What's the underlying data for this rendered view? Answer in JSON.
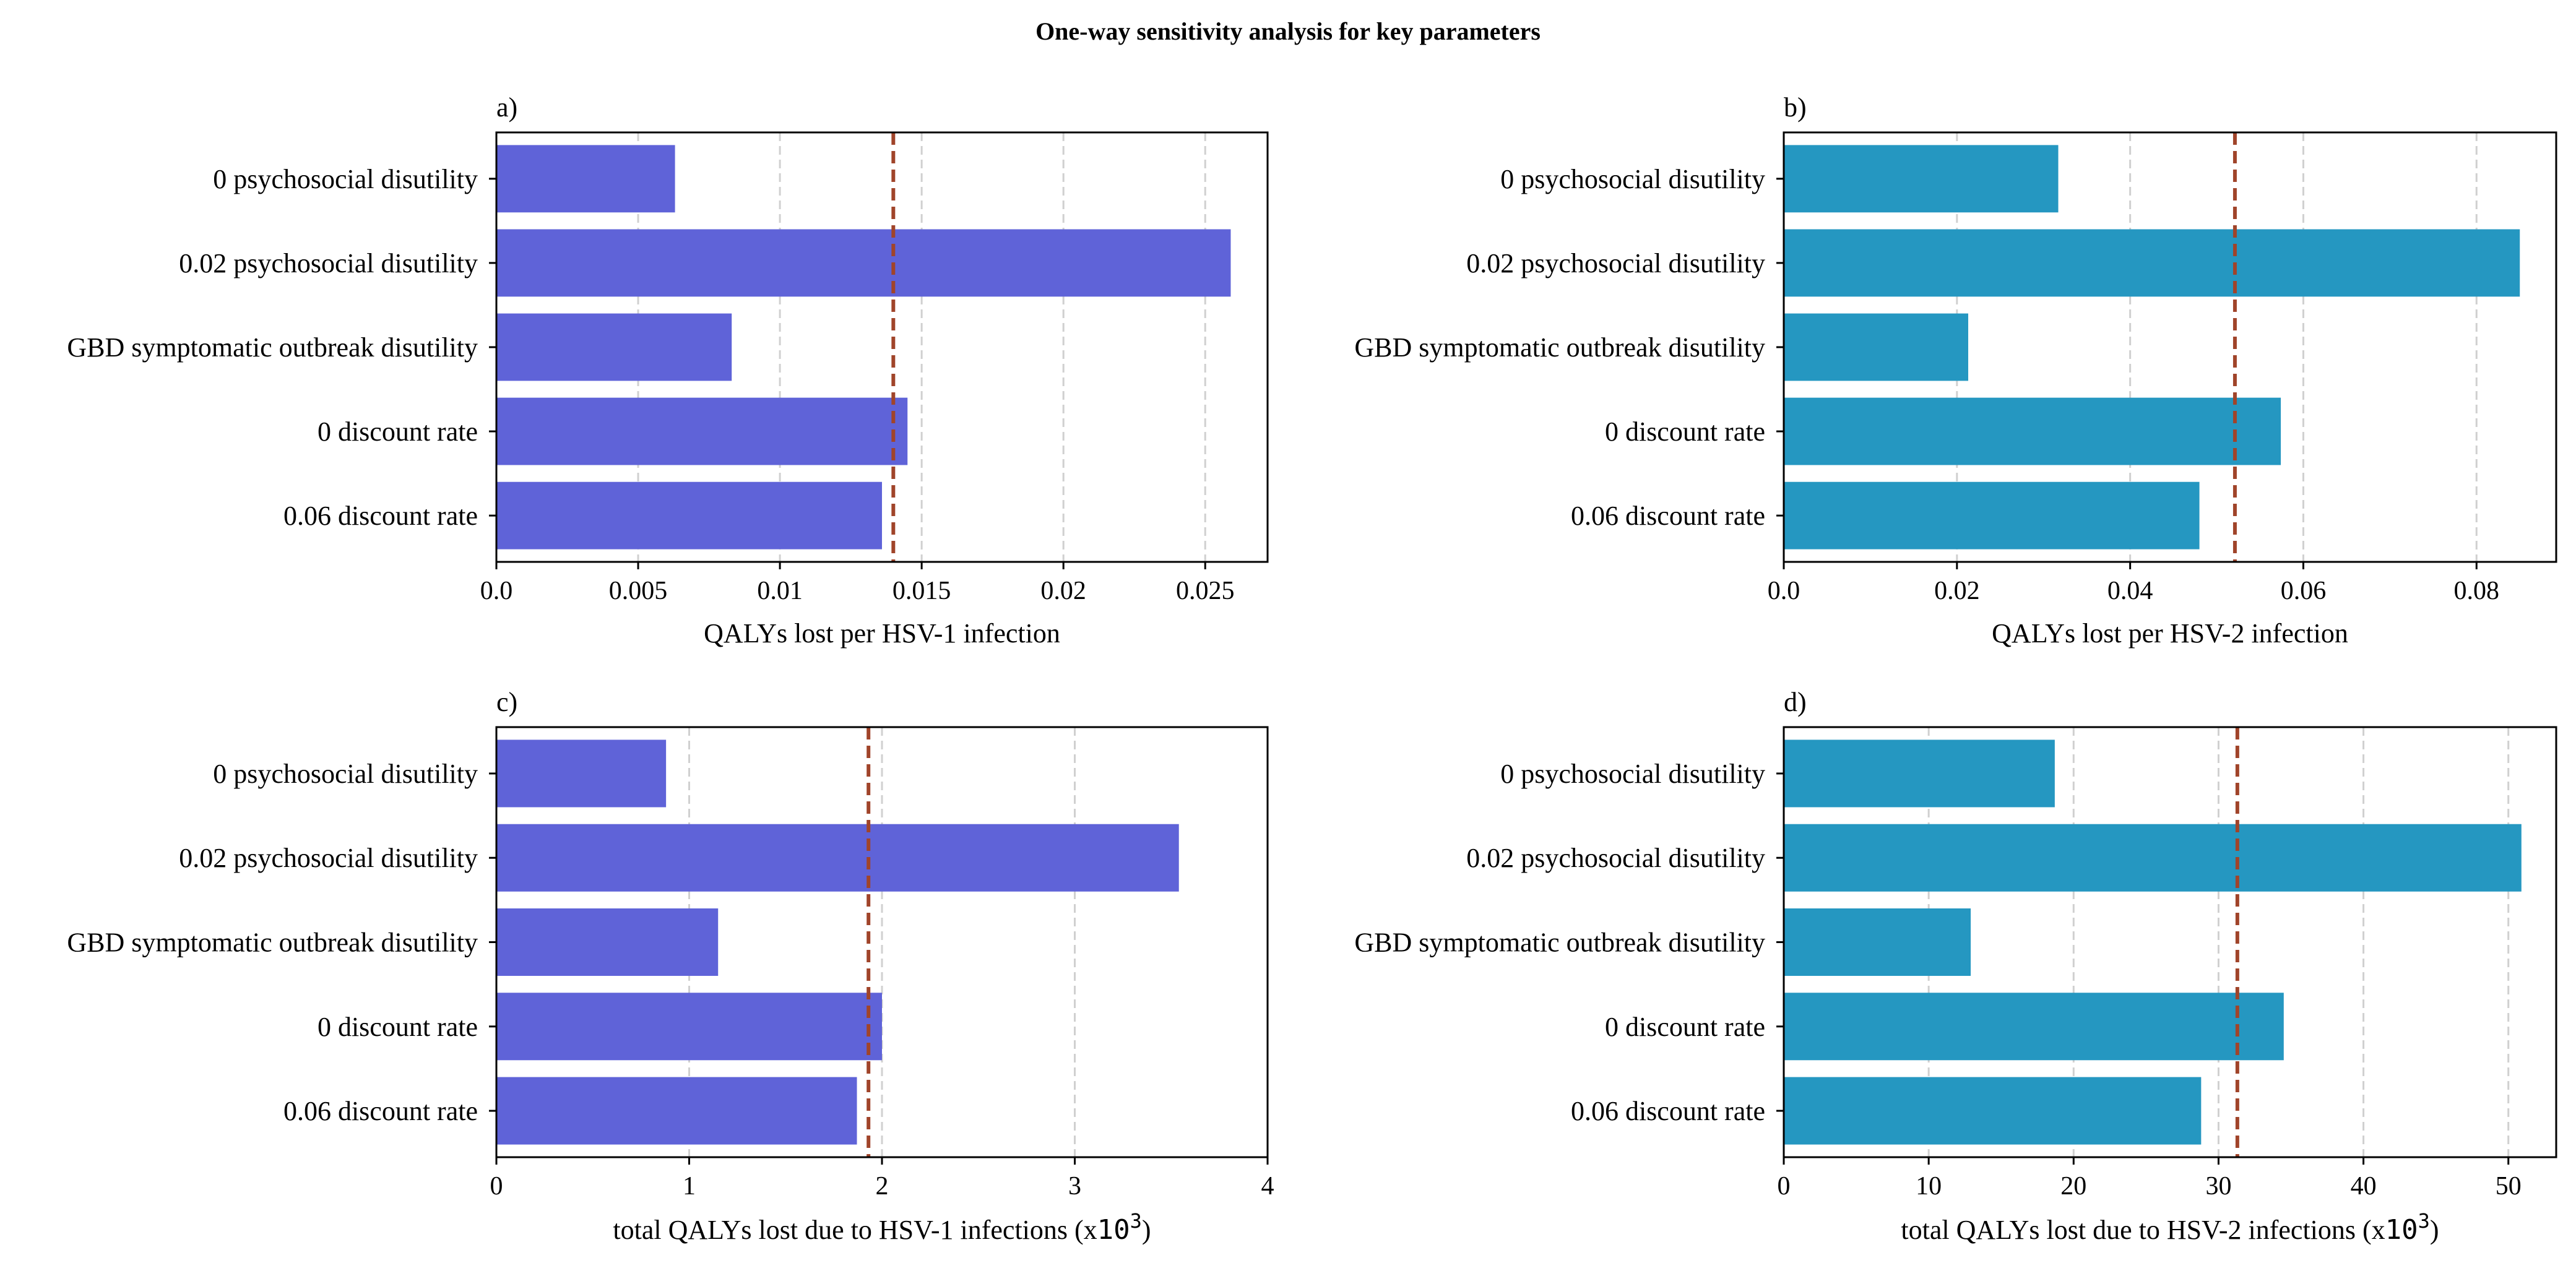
{
  "title": "One-way sensitivity analysis for key parameters",
  "colors": {
    "bar_hsv1": "#5f63d8",
    "bar_hsv2": "#2597c1",
    "reference_line": "#a0442a",
    "grid": "#d0d0d0"
  },
  "chart_data": [
    {
      "type": "bar",
      "orientation": "horizontal",
      "panel_label": "a)",
      "categories": [
        "0 psychosocial disutility",
        "0.02 psychosocial disutility",
        "GBD symptomatic outbreak disutility",
        "0 discount rate",
        "0.06 discount rate"
      ],
      "values": [
        0.0063,
        0.0259,
        0.0083,
        0.0145,
        0.0136
      ],
      "reference_value": 0.014,
      "xlim": [
        0,
        0.0272
      ],
      "xticks": [
        0.0,
        0.005,
        0.01,
        0.015,
        0.02,
        0.025
      ],
      "xtick_labels": [
        "0.0",
        "0.005",
        "0.01",
        "0.015",
        "0.02",
        "0.025"
      ],
      "xlabel": "QALYs lost per HSV-1 infection",
      "xlabel_suffix": "",
      "grid": "x-dashed",
      "color_key": "bar_hsv1"
    },
    {
      "type": "bar",
      "orientation": "horizontal",
      "panel_label": "b)",
      "categories": [
        "0 psychosocial disutility",
        "0.02 psychosocial disutility",
        "GBD symptomatic outbreak disutility",
        "0 discount rate",
        "0.06 discount rate"
      ],
      "values": [
        0.0317,
        0.085,
        0.0213,
        0.0574,
        0.048
      ],
      "reference_value": 0.0521,
      "xlim": [
        0,
        0.0892
      ],
      "xticks": [
        0.0,
        0.02,
        0.04,
        0.06,
        0.08
      ],
      "xtick_labels": [
        "0.0",
        "0.02",
        "0.04",
        "0.06",
        "0.08"
      ],
      "xlabel": "QALYs lost per HSV-2 infection",
      "xlabel_suffix": "",
      "grid": "x-dashed",
      "color_key": "bar_hsv2"
    },
    {
      "type": "bar",
      "orientation": "horizontal",
      "panel_label": "c)",
      "categories": [
        "0 psychosocial disutility",
        "0.02 psychosocial disutility",
        "GBD symptomatic outbreak disutility",
        "0 discount rate",
        "0.06 discount rate"
      ],
      "values": [
        0.88,
        3.54,
        1.15,
        2.0,
        1.87
      ],
      "reference_value": 1.93,
      "xlim": [
        0,
        4
      ],
      "xticks": [
        0,
        1,
        2,
        3,
        4
      ],
      "xtick_labels": [
        "0",
        "1",
        "2",
        "3",
        "4"
      ],
      "xlabel": "total QALYs lost due to HSV-1 infections (x",
      "xlabel_mono": "10",
      "xlabel_sup": "3",
      "xlabel_suffix": ")",
      "grid": "x-dashed",
      "color_key": "bar_hsv1"
    },
    {
      "type": "bar",
      "orientation": "horizontal",
      "panel_label": "d)",
      "categories": [
        "0 psychosocial disutility",
        "0.02 psychosocial disutility",
        "GBD symptomatic outbreak disutility",
        "0 discount rate",
        "0.06 discount rate"
      ],
      "values": [
        18.7,
        50.9,
        12.9,
        34.5,
        28.8
      ],
      "reference_value": 31.3,
      "xlim": [
        0,
        53.3
      ],
      "xticks": [
        0,
        10,
        20,
        30,
        40,
        50
      ],
      "xtick_labels": [
        "0",
        "10",
        "20",
        "30",
        "40",
        "50"
      ],
      "xlabel": "total QALYs lost due to HSV-2 infections (x",
      "xlabel_mono": "10",
      "xlabel_sup": "3",
      "xlabel_suffix": ")",
      "grid": "x-dashed",
      "color_key": "bar_hsv2"
    }
  ]
}
